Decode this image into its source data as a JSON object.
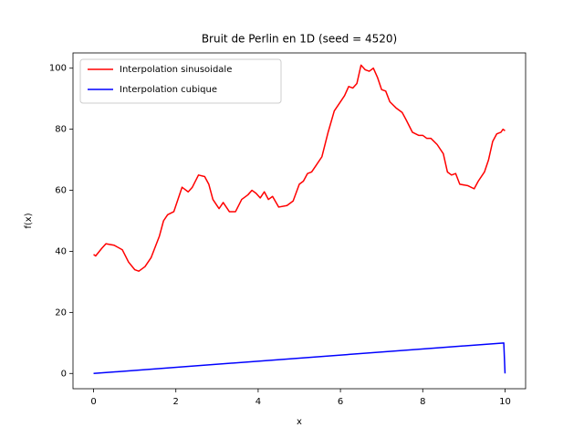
{
  "chart_data": {
    "type": "line",
    "title": "Bruit de Perlin en 1D (seed = 4520)",
    "x_label": "x",
    "y_label": "f(x)",
    "xlim": [
      -0.5,
      10.5
    ],
    "ylim": [
      -5,
      105
    ],
    "xticks": [
      0,
      2,
      4,
      6,
      8,
      10
    ],
    "yticks": [
      0,
      20,
      40,
      60,
      80,
      100
    ],
    "legend": "upper left",
    "series": [
      {
        "name": "Interpolation sinusoidale",
        "color": "#ff0000",
        "x": [
          0,
          0.05,
          0.2,
          0.3,
          0.5,
          0.7,
          0.85,
          1.0,
          1.1,
          1.25,
          1.4,
          1.6,
          1.7,
          1.8,
          1.95,
          2.05,
          2.15,
          2.3,
          2.4,
          2.55,
          2.7,
          2.8,
          2.9,
          3.0,
          3.05,
          3.15,
          3.3,
          3.45,
          3.6,
          3.75,
          3.85,
          3.95,
          4.05,
          4.15,
          4.25,
          4.35,
          4.5,
          4.7,
          4.85,
          5.0,
          5.1,
          5.2,
          5.3,
          5.4,
          5.55,
          5.7,
          5.85,
          6.0,
          6.1,
          6.2,
          6.3,
          6.4,
          6.5,
          6.6,
          6.7,
          6.8,
          6.9,
          7.0,
          7.1,
          7.2,
          7.35,
          7.5,
          7.6,
          7.75,
          7.9,
          8.0,
          8.1,
          8.2,
          8.35,
          8.5,
          8.6,
          8.7,
          8.8,
          8.9,
          9.1,
          9.25,
          9.35,
          9.5,
          9.6,
          9.7,
          9.8,
          9.9,
          9.95,
          10.0
        ],
        "y": [
          39,
          38.5,
          41,
          42.5,
          42,
          40.5,
          36.5,
          34,
          33.5,
          35,
          38,
          45,
          50,
          52,
          53,
          57,
          61,
          59.5,
          61,
          65,
          64.5,
          62,
          57,
          55,
          54,
          56,
          53,
          53,
          57,
          58.5,
          60,
          59,
          57.5,
          59.5,
          57,
          58,
          54.5,
          55,
          56.5,
          62,
          63,
          65.5,
          66,
          68,
          71,
          79,
          86,
          89,
          91,
          94,
          93.5,
          95,
          101,
          99.5,
          99,
          100,
          97,
          93,
          92.5,
          89,
          87,
          85.5,
          83,
          79,
          78,
          78,
          77,
          77,
          75,
          72,
          66,
          65,
          65.5,
          62,
          61.5,
          60.5,
          63,
          66,
          70,
          76,
          78.5,
          79,
          80,
          79.5
        ]
      },
      {
        "name": "Interpolation cubique",
        "color": "#0000ff",
        "x": [
          0,
          9.97,
          10.0
        ],
        "y": [
          0,
          10,
          0
        ]
      }
    ]
  }
}
